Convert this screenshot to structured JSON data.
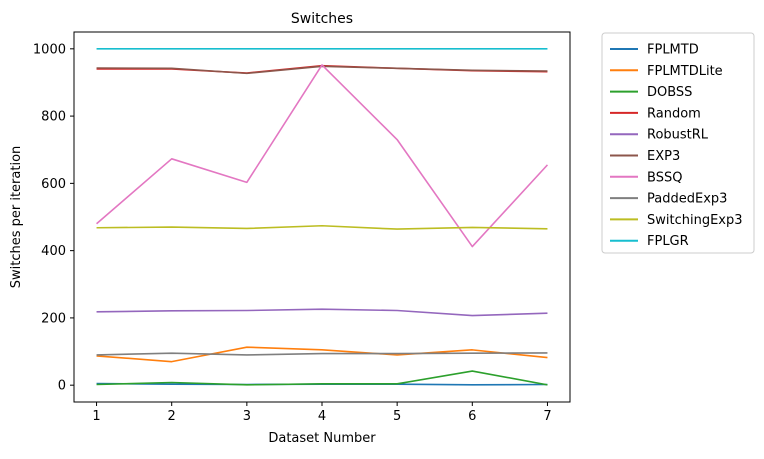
{
  "chart_data": {
    "type": "line",
    "title": "Switches",
    "xlabel": "Dataset Number",
    "ylabel": "Switches per iteration",
    "x": [
      1,
      2,
      3,
      4,
      5,
      6,
      7
    ],
    "xlim": [
      0.7,
      7.3
    ],
    "ylim": [
      -50,
      1050
    ],
    "xticks": [
      1,
      2,
      3,
      4,
      5,
      6,
      7
    ],
    "yticks": [
      0,
      200,
      400,
      600,
      800,
      1000
    ],
    "grid": false,
    "legend_position": "outside-right",
    "series": [
      {
        "name": "FPLMTD",
        "color": "#1f77b4",
        "values": [
          5,
          3,
          2,
          3,
          3,
          1,
          2
        ]
      },
      {
        "name": "FPLMTDLite",
        "color": "#ff7f0e",
        "values": [
          87,
          70,
          113,
          105,
          90,
          105,
          82
        ]
      },
      {
        "name": "DOBSS",
        "color": "#2ca02c",
        "values": [
          2,
          8,
          1,
          4,
          4,
          42,
          1
        ]
      },
      {
        "name": "Random",
        "color": "#d62728",
        "values": [
          940,
          940,
          928,
          950,
          942,
          935,
          932
        ]
      },
      {
        "name": "RobustRL",
        "color": "#9467bd",
        "values": [
          218,
          221,
          222,
          226,
          222,
          207,
          214
        ]
      },
      {
        "name": "EXP3",
        "color": "#8c564b",
        "values": [
          943,
          942,
          927,
          948,
          942,
          936,
          934
        ]
      },
      {
        "name": "BSSQ",
        "color": "#e377c2",
        "values": [
          480,
          673,
          603,
          952,
          730,
          412,
          655
        ]
      },
      {
        "name": "PaddedExp3",
        "color": "#7f7f7f",
        "values": [
          90,
          95,
          90,
          94,
          94,
          95,
          96
        ]
      },
      {
        "name": "SwitchingExp3",
        "color": "#bcbd22",
        "values": [
          468,
          470,
          466,
          474,
          464,
          469,
          465
        ]
      },
      {
        "name": "FPLGR",
        "color": "#17becf",
        "values": [
          1000,
          1000,
          1000,
          1000,
          1000,
          1000,
          1000
        ]
      }
    ]
  }
}
